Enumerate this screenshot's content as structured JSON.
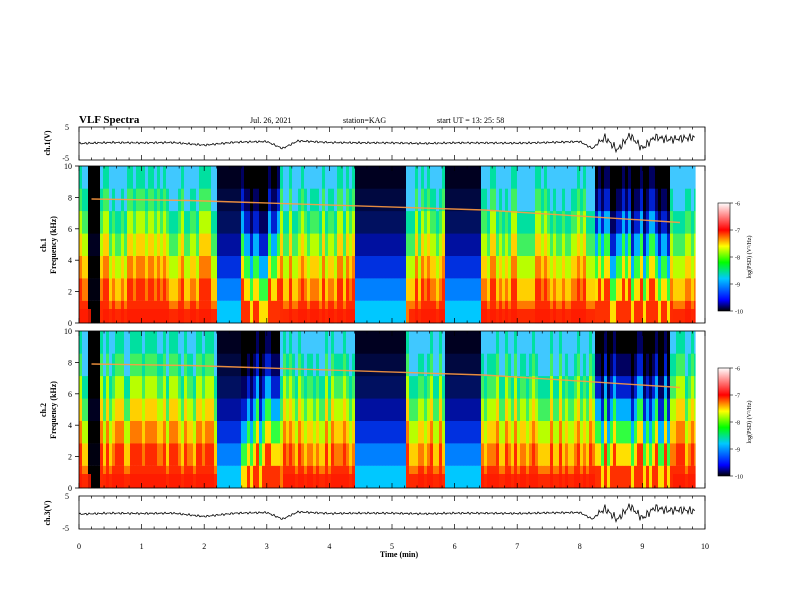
{
  "header": {
    "title": "VLF Spectra",
    "date": "Jul. 26, 2021",
    "station": "station=KAG",
    "start": "start UT = 13: 25: 58"
  },
  "chart_data": [
    {
      "type": "line",
      "panel": "ch1-waveform",
      "ylabel": "ch.1(V)",
      "yticks": [
        "5",
        "-5"
      ],
      "ylim": [
        -5,
        5
      ],
      "xlim": [
        0,
        10
      ],
      "series": [
        {
          "x": [
            0,
            0.5,
            1,
            1.5,
            2,
            2.5,
            3,
            3.25,
            3.5,
            4,
            4.5,
            5,
            5.5,
            6,
            6.5,
            7,
            7.5,
            8,
            8.2,
            8.4,
            8.6,
            8.8,
            9,
            9.2,
            9.4,
            9.6,
            9.8
          ],
          "y": [
            0,
            0.3,
            0.2,
            0.3,
            -0.5,
            0.4,
            0.6,
            -1.5,
            0.8,
            0.3,
            0.2,
            0.2,
            0,
            0.2,
            0.2,
            0.1,
            0.3,
            0.6,
            -1.5,
            1.8,
            -2,
            2.5,
            -1.5,
            2,
            1.2,
            1.5,
            1.8
          ]
        }
      ]
    },
    {
      "type": "heatmap",
      "panel": "ch1-spectrogram",
      "ylabel": "ch.1\nFrequency (kHz)",
      "yticks": [
        "0",
        "2",
        "4",
        "6",
        "8",
        "10"
      ],
      "ylim": [
        0,
        10
      ],
      "xlim": [
        0,
        10
      ],
      "colorbar": {
        "label": "log(PSD) (V²/Hz)",
        "ticks": [
          "-6",
          "-7",
          "-8",
          "-9",
          "-10"
        ],
        "range": [
          -10,
          -6
        ],
        "colors": [
          "#000000",
          "#0000ff",
          "#00c8ff",
          "#00ff00",
          "#ffff00",
          "#ff0000",
          "#ffffff"
        ]
      },
      "segments": [
        {
          "x": [
            0,
            0.1
          ],
          "level": "high"
        },
        {
          "x": [
            0.1,
            0.3
          ],
          "level": "dark"
        },
        {
          "x": [
            0.3,
            2.2
          ],
          "level": "high"
        },
        {
          "x": [
            2.2,
            2.55
          ],
          "level": "quiet"
        },
        {
          "x": [
            2.55,
            3.2
          ],
          "level": "mixed"
        },
        {
          "x": [
            3.2,
            4.4
          ],
          "level": "high"
        },
        {
          "x": [
            4.4,
            5.2
          ],
          "level": "quiet"
        },
        {
          "x": [
            5.2,
            5.8
          ],
          "level": "high"
        },
        {
          "x": [
            5.8,
            6.4
          ],
          "level": "quiet"
        },
        {
          "x": [
            6.4,
            8.2
          ],
          "level": "high"
        },
        {
          "x": [
            8.2,
            9.4
          ],
          "level": "mixed"
        },
        {
          "x": [
            9.4,
            9.85
          ],
          "level": "high"
        }
      ],
      "tone_khz": [
        7.9,
        7.8,
        7.6,
        7.4,
        7.2,
        6.8,
        6.4
      ]
    },
    {
      "type": "heatmap",
      "panel": "ch2-spectrogram",
      "ylabel": "ch.2\nFrequency (kHz)",
      "yticks": [
        "0",
        "2",
        "4",
        "6",
        "8",
        "10"
      ],
      "ylim": [
        0,
        10
      ],
      "xlim": [
        0,
        10
      ],
      "colorbar": {
        "label": "log(PSD) (V²/Hz)",
        "ticks": [
          "-6",
          "-7",
          "-8",
          "-9",
          "-10"
        ],
        "range": [
          -10,
          -6
        ]
      }
    },
    {
      "type": "line",
      "panel": "ch3-waveform",
      "ylabel": "ch.3(V)",
      "yticks": [
        "5",
        "-5"
      ],
      "ylim": [
        -5,
        5
      ],
      "xlim": [
        0,
        10
      ],
      "xlabel": "Time (min)",
      "xticks": [
        "0",
        "1",
        "2",
        "3",
        "4",
        "5",
        "6",
        "7",
        "8",
        "9",
        "10"
      ],
      "series": [
        {
          "x": [
            0,
            0.5,
            1,
            1.5,
            2,
            2.5,
            3,
            3.25,
            3.5,
            4,
            4.5,
            5,
            5.5,
            6,
            6.5,
            7,
            7.5,
            8,
            8.2,
            8.4,
            8.6,
            8.8,
            9,
            9.2,
            9.4,
            9.6,
            9.8
          ],
          "y": [
            -0.5,
            -0.2,
            -0.3,
            -0.2,
            -1.2,
            -0.2,
            0,
            -2,
            0.2,
            -0.3,
            -0.2,
            -0.2,
            -0.4,
            -0.2,
            -0.2,
            -0.3,
            -0.1,
            0,
            -2,
            1.2,
            -2.2,
            2,
            -1.8,
            1.5,
            0.6,
            0.8,
            0.5
          ]
        }
      ]
    }
  ]
}
